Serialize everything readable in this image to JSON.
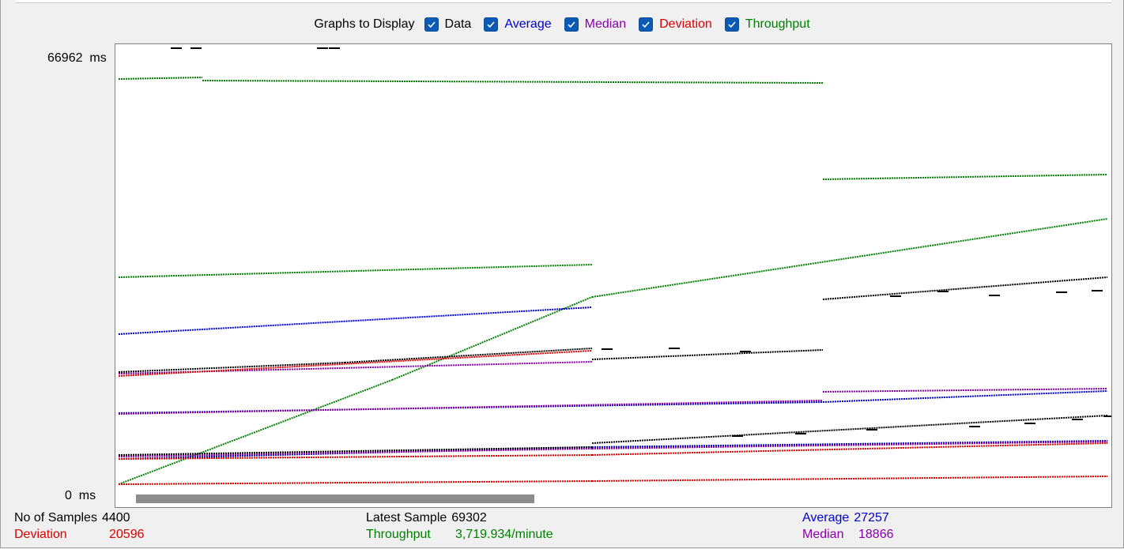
{
  "legend": {
    "title": "Graphs to Display",
    "items": [
      {
        "label": "Data",
        "checked": true,
        "color": "#000000"
      },
      {
        "label": "Average",
        "checked": true,
        "color": "#0000cc"
      },
      {
        "label": "Median",
        "checked": true,
        "color": "#8a00aa"
      },
      {
        "label": "Deviation",
        "checked": true,
        "color": "#e00000"
      },
      {
        "label": "Throughput",
        "checked": true,
        "color": "#008000"
      }
    ]
  },
  "axis": {
    "y_max": "66962",
    "y_min": "0",
    "unit": "ms"
  },
  "stats": {
    "samples_label": "No of Samples",
    "samples_value": "4400",
    "latest_label": "Latest Sample",
    "latest_value": "69302",
    "average_label": "Average",
    "average_value": "27257",
    "deviation_label": "Deviation",
    "deviation_value": "20596",
    "throughput_label": "Throughput",
    "throughput_value": "3,719.934/minute",
    "median_label": "Median",
    "median_value": "18866"
  },
  "colors": {
    "data": "#000000",
    "average": "#0000cc",
    "median": "#8a00aa",
    "deviation": "#e00000",
    "throughput": "#008000",
    "label_text": "#000000",
    "samples_label": "#000000",
    "latest_label": "#000000"
  }
}
